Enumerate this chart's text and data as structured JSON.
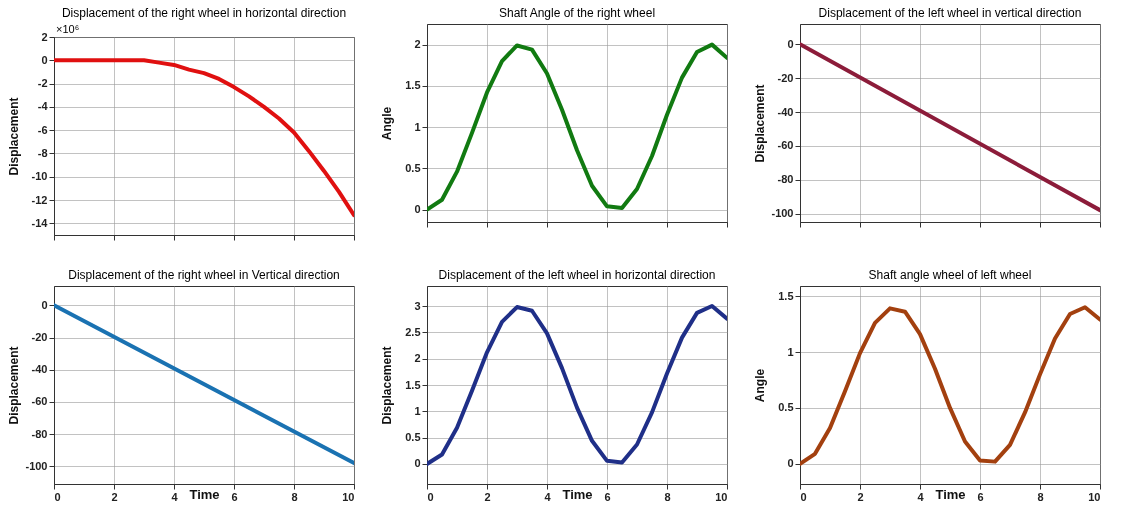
{
  "chart_data": [
    {
      "type": "line",
      "title": "Displacement of the right wheel in horizontal direction",
      "ylabel": "Displacement",
      "annotations": [
        "×10⁶"
      ],
      "x": [
        0,
        0.5,
        1,
        1.5,
        2,
        2.5,
        3,
        3.5,
        4,
        4.5,
        5,
        5.5,
        6,
        6.5,
        7,
        7.5,
        8,
        8.5,
        9,
        9.5,
        10
      ],
      "series": [
        {
          "color": "#e01010",
          "values": [
            0,
            0,
            0,
            0,
            0,
            0,
            0,
            -0.2,
            -0.4,
            -0.8,
            -1.1,
            -1.6,
            -2.3,
            -3.1,
            -4.0,
            -5.0,
            -6.2,
            -7.8,
            -9.5,
            -11.3,
            -13.3
          ]
        }
      ],
      "xlim": [
        0,
        10
      ],
      "xticks": [
        0,
        2,
        4,
        6,
        8,
        10
      ],
      "ylim": [
        -15,
        2
      ],
      "yticks": [
        -14,
        -12,
        -10,
        -8,
        -6,
        -4,
        -2,
        0,
        2
      ],
      "grid": true,
      "tick_labels": "y"
    },
    {
      "type": "line",
      "title": "Shaft Angle of the right wheel",
      "ylabel": "Angle",
      "x": [
        0,
        0.5,
        1,
        1.5,
        2,
        2.5,
        3,
        3.5,
        4,
        4.5,
        5,
        5.5,
        6,
        6.5,
        7,
        7.5,
        8,
        8.5,
        9,
        9.5,
        10
      ],
      "series": [
        {
          "color": "#117a11",
          "values": [
            0,
            0.12,
            0.46,
            0.93,
            1.42,
            1.8,
            1.99,
            1.94,
            1.65,
            1.21,
            0.72,
            0.29,
            0.04,
            0.02,
            0.25,
            0.65,
            1.15,
            1.6,
            1.91,
            2.0,
            1.84
          ]
        }
      ],
      "xlim": [
        0,
        10
      ],
      "xticks": [
        0,
        2,
        4,
        6,
        8,
        10
      ],
      "ylim": [
        -0.15,
        2.25
      ],
      "yticks": [
        0,
        0.5,
        1,
        1.5,
        2
      ],
      "grid": true,
      "tick_labels": "y"
    },
    {
      "type": "line",
      "title": "Displacement of the left wheel in vertical direction",
      "ylabel": "Displacement",
      "x": [
        0,
        10
      ],
      "series": [
        {
          "color": "#8c1c3a",
          "values": [
            0,
            -98
          ]
        }
      ],
      "xlim": [
        0,
        10
      ],
      "xticks": [
        0,
        2,
        4,
        6,
        8,
        10
      ],
      "ylim": [
        -105,
        12
      ],
      "yticks": [
        -100,
        -80,
        -60,
        -40,
        -20,
        0
      ],
      "grid": true,
      "tick_labels": "y"
    },
    {
      "type": "line",
      "title": "Displacement of the right wheel in Vertical direction",
      "xlabel": "Time",
      "ylabel": "Displacement",
      "x": [
        0,
        10
      ],
      "series": [
        {
          "color": "#1a72b2",
          "values": [
            0,
            -98
          ]
        }
      ],
      "xlim": [
        0,
        10
      ],
      "xticks": [
        0,
        2,
        4,
        6,
        8,
        10
      ],
      "ylim": [
        -111,
        12
      ],
      "yticks": [
        -100,
        -80,
        -60,
        -40,
        -20,
        0
      ],
      "grid": true
    },
    {
      "type": "line",
      "title": "Displacement of the left wheel in horizontal direction",
      "xlabel": "Time",
      "ylabel": "Displacement",
      "x": [
        0,
        0.5,
        1,
        1.5,
        2,
        2.5,
        3,
        3.5,
        4,
        4.5,
        5,
        5.5,
        6,
        6.5,
        7,
        7.5,
        8,
        8.5,
        9,
        9.5,
        10
      ],
      "series": [
        {
          "color": "#1f2f88",
          "values": [
            0,
            0.18,
            0.69,
            1.39,
            2.12,
            2.7,
            2.98,
            2.91,
            2.48,
            1.82,
            1.07,
            0.44,
            0.06,
            0.03,
            0.37,
            0.98,
            1.72,
            2.4,
            2.87,
            3.0,
            2.76
          ]
        }
      ],
      "xlim": [
        0,
        10
      ],
      "xticks": [
        0,
        2,
        4,
        6,
        8,
        10
      ],
      "ylim": [
        -0.38,
        3.38
      ],
      "yticks": [
        0,
        0.5,
        1,
        1.5,
        2,
        2.5,
        3
      ],
      "grid": true
    },
    {
      "type": "line",
      "title": "Shaft angle wheel of left wheel",
      "xlabel": "Time",
      "ylabel": "Angle",
      "x": [
        0,
        0.5,
        1,
        1.5,
        2,
        2.5,
        3,
        3.5,
        4,
        4.5,
        5,
        5.5,
        6,
        6.5,
        7,
        7.5,
        8,
        8.5,
        9,
        9.5,
        10
      ],
      "series": [
        {
          "color": "#a3400f",
          "values": [
            0,
            0.09,
            0.32,
            0.65,
            0.99,
            1.26,
            1.39,
            1.36,
            1.16,
            0.85,
            0.5,
            0.2,
            0.03,
            0.02,
            0.17,
            0.46,
            0.8,
            1.12,
            1.34,
            1.4,
            1.29
          ]
        }
      ],
      "xlim": [
        0,
        10
      ],
      "xticks": [
        0,
        2,
        4,
        6,
        8,
        10
      ],
      "ylim": [
        -0.18,
        1.59
      ],
      "yticks": [
        0,
        0.5,
        1,
        1.5
      ],
      "grid": true
    }
  ]
}
